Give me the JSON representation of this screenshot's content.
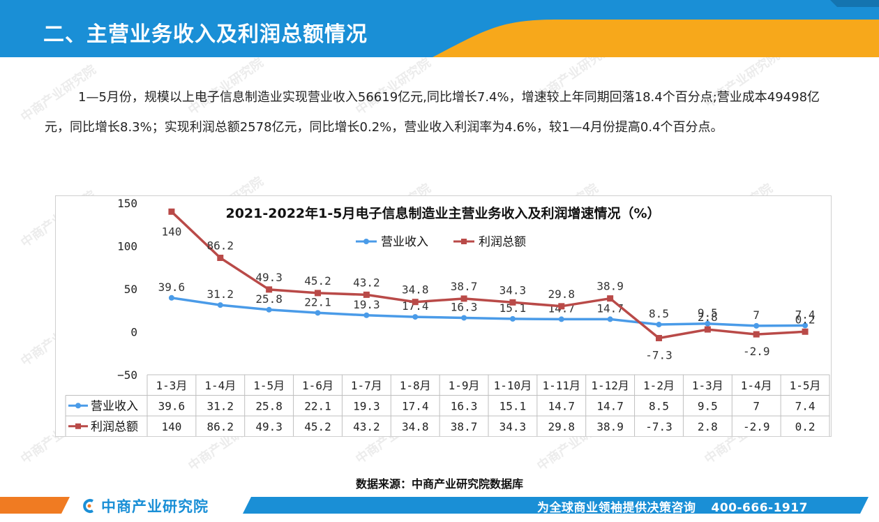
{
  "header": {
    "title": "二、主营业务收入及利润总额情况"
  },
  "intro": {
    "text": "1—5月份，规模以上电子信息制造业实现营业收入56619亿元,同比增长7.4%，增速较上年同期回落18.4个百分点;营业成本49498亿元，同比增长8.3%；实现利润总额2578亿元，同比增长0.2%，营业收入利润率为4.6%，较1—4月份提高0.4个百分点。"
  },
  "chart_data": {
    "type": "line",
    "title": "2021-2022年1-5月电子信息制造业主营业务收入及利润增速情况（%）",
    "categories": [
      "1-3月",
      "1-4月",
      "1-5月",
      "1-6月",
      "1-7月",
      "1-8月",
      "1-9月",
      "1-10月",
      "1-11月",
      "1-12月",
      "1-2月",
      "1-3月",
      "1-4月",
      "1-5月"
    ],
    "series": [
      {
        "name": "营业收入",
        "color": "#4a9be8",
        "marker": "circle",
        "values": [
          39.6,
          31.2,
          25.8,
          22.1,
          19.3,
          17.4,
          16.3,
          15.1,
          14.7,
          14.7,
          8.5,
          9.5,
          7,
          7.4
        ],
        "labels": [
          "39.6",
          "31.2",
          "25.8",
          "22.1",
          "19.3",
          "17.4",
          "16.3",
          "15.1",
          "14.7",
          "14.7",
          "8.5",
          "9.5",
          "7",
          "7.4"
        ]
      },
      {
        "name": "利润总额",
        "color": "#b94a48",
        "marker": "square",
        "values": [
          140,
          86.2,
          49.3,
          45.2,
          43.2,
          34.8,
          38.7,
          34.3,
          29.8,
          38.9,
          -7.3,
          2.8,
          -2.9,
          0.2
        ],
        "labels": [
          "140",
          "86.2",
          "49.3",
          "45.2",
          "43.2",
          "34.8",
          "38.7",
          "34.3",
          "29.8",
          "38.9",
          "-7.3",
          "2.8",
          "-2.9",
          "0.2"
        ]
      }
    ],
    "yticks": [
      "150",
      "100",
      "50",
      "0",
      "−50"
    ],
    "ylim": [
      -50,
      150
    ],
    "legend": "top-center",
    "grid": false,
    "data_table": true
  },
  "source": {
    "text": "数据来源：中商产业研究院数据库"
  },
  "footer": {
    "logo": "中商产业研究院",
    "slogan": "为全球商业领袖提供决策咨询",
    "phone": "400-666-1917"
  },
  "watermark": {
    "text": "中商产业研究院"
  },
  "colors": {
    "header_blue": "#1a8fd6",
    "accent_orange": "#f7a81b",
    "footer_orange": "#f07b22"
  }
}
